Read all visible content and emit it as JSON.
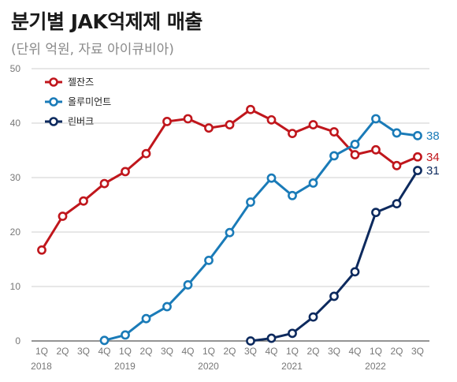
{
  "chart_data": {
    "type": "line",
    "title": "분기별 JAK억제제 매출",
    "subtitle": "(단위 억원, 자료 아이큐비아)",
    "xlabel": "",
    "ylabel": "",
    "ylim": [
      0,
      50
    ],
    "yticks": [
      0,
      10,
      20,
      30,
      40,
      50
    ],
    "grid": true,
    "legend_position": "top-left",
    "quarter_labels": [
      "1Q",
      "2Q",
      "3Q",
      "4Q",
      "1Q",
      "2Q",
      "3Q",
      "4Q",
      "1Q",
      "2Q",
      "3Q",
      "4Q",
      "1Q",
      "2Q",
      "3Q",
      "4Q",
      "1Q",
      "2Q",
      "3Q"
    ],
    "year_labels": [
      {
        "label": "2018",
        "index": 0
      },
      {
        "label": "2019",
        "index": 4
      },
      {
        "label": "2020",
        "index": 8
      },
      {
        "label": "2021",
        "index": 12
      },
      {
        "label": "2022",
        "index": 16
      }
    ],
    "series": [
      {
        "name": "젤잔즈",
        "color": "#c0161c",
        "start": 0,
        "values": [
          16.7,
          22.9,
          25.7,
          28.9,
          31.1,
          34.4,
          40.3,
          40.8,
          39.1,
          39.7,
          42.5,
          40.6,
          38.1,
          39.7,
          38.4,
          34.2,
          35.1,
          32.2,
          33.8
        ],
        "end_label": "34"
      },
      {
        "name": "올루미언트",
        "color": "#1a7bb8",
        "start": 3,
        "values": [
          0.1,
          1.1,
          4.1,
          6.3,
          10.3,
          14.8,
          19.9,
          25.5,
          29.9,
          26.7,
          29.0,
          34.0,
          36.1,
          40.8,
          38.2,
          37.7
        ],
        "end_label": "38"
      },
      {
        "name": "린버크",
        "color": "#0d2a5e",
        "start": 10,
        "values": [
          0.0,
          0.5,
          1.4,
          4.4,
          8.2,
          12.7,
          23.6,
          25.2,
          31.3
        ],
        "end_label": "31"
      }
    ]
  }
}
